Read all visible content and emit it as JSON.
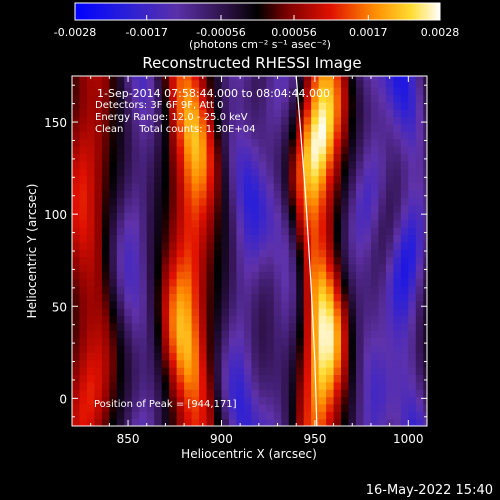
{
  "chart_data": {
    "type": "heatmap",
    "title": "Reconstructed RHESSI Image",
    "xlabel": "Heliocentric X (arcsec)",
    "ylabel": "Heliocentric Y (arcsec)",
    "xlim": [
      820,
      1010
    ],
    "ylim": [
      -15,
      175
    ],
    "x_ticks": [
      850,
      900,
      950,
      1000
    ],
    "y_ticks": [
      0,
      50,
      100,
      150
    ],
    "colorbar": {
      "colormap": "blue-purple-black-red-orange-yellow-white",
      "range": [
        -0.0028,
        0.0028
      ],
      "tick_values": [
        -0.0028,
        -0.0017,
        -0.00056,
        0.00056,
        0.0017,
        0.0028
      ],
      "tick_labels": [
        "-0.0028",
        "-0.0017",
        "-0.00056",
        "0.00056",
        "0.0017",
        "0.0028"
      ],
      "label": "(photons cm⁻² s⁻¹ asec⁻²)"
    },
    "info_lines": [
      "1-Sep-2014 07:58:44.000 to 08:04:44.000",
      "Detectors: 3F 6F 9F, Att 0",
      "Energy Range: 12.0 - 25.0 keV",
      "Clean     Total counts: 1.30E+04"
    ],
    "peak_label": "Position of Peak = [944,171]",
    "peak": [
      944,
      171
    ],
    "bands": [
      {
        "center_x": 829,
        "sign": "positive",
        "peak_value": 0.0012
      },
      {
        "center_x": 855,
        "sign": "negative",
        "peak_value": -0.0016
      },
      {
        "center_x": 883,
        "sign": "positive",
        "peak_value": 0.0022
      },
      {
        "center_x": 912,
        "sign": "negative",
        "peak_value": -0.0019
      },
      {
        "center_x": 932,
        "sign": "negative",
        "peak_value": -0.0014
      },
      {
        "center_x": 952,
        "sign": "positive",
        "peak_value": 0.0028
      },
      {
        "center_x": 978,
        "sign": "negative",
        "peak_value": -0.0016
      },
      {
        "center_x": 1000,
        "sign": "negative",
        "peak_value": -0.0022
      }
    ],
    "limb_curve": [
      [
        940,
        175
      ],
      [
        942,
        150
      ],
      [
        945,
        110
      ],
      [
        948,
        60
      ],
      [
        950,
        20
      ],
      [
        951,
        -15
      ]
    ]
  },
  "footer": {
    "timestamp": "16-May-2022 15:40"
  }
}
